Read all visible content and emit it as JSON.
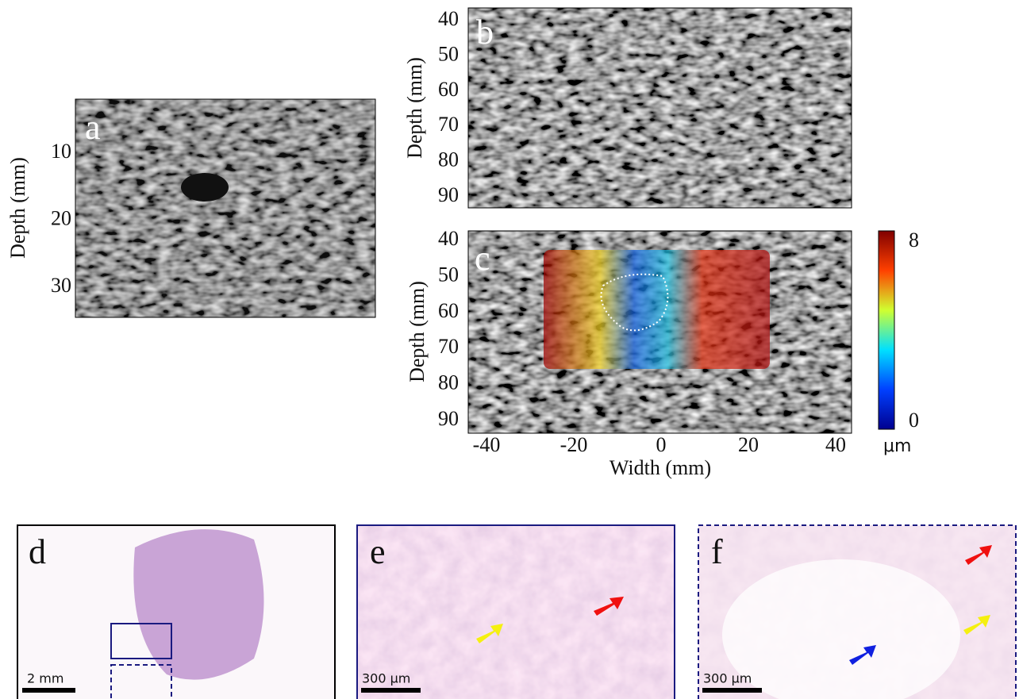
{
  "panels": {
    "a": {
      "label": "a",
      "y_axis_label": "Depth (mm)",
      "y_ticks": [
        10,
        20,
        30
      ]
    },
    "b": {
      "label": "b",
      "y_axis_label": "Depth (mm)",
      "y_ticks": [
        40,
        50,
        60,
        70,
        80,
        90
      ]
    },
    "c": {
      "label": "c",
      "y_axis_label": "Depth (mm)",
      "y_ticks": [
        40,
        50,
        60,
        70,
        80,
        90
      ],
      "x_axis_label": "Width (mm)",
      "x_ticks": [
        -40,
        -20,
        0,
        20,
        40
      ],
      "colorbar": {
        "max": 8,
        "min": 0,
        "unit": "μm"
      }
    },
    "d": {
      "label": "d",
      "scale_bar": "2 mm"
    },
    "e": {
      "label": "e",
      "scale_bar": "300 μm"
    },
    "f": {
      "label": "f",
      "scale_bar": "300 μm"
    }
  }
}
